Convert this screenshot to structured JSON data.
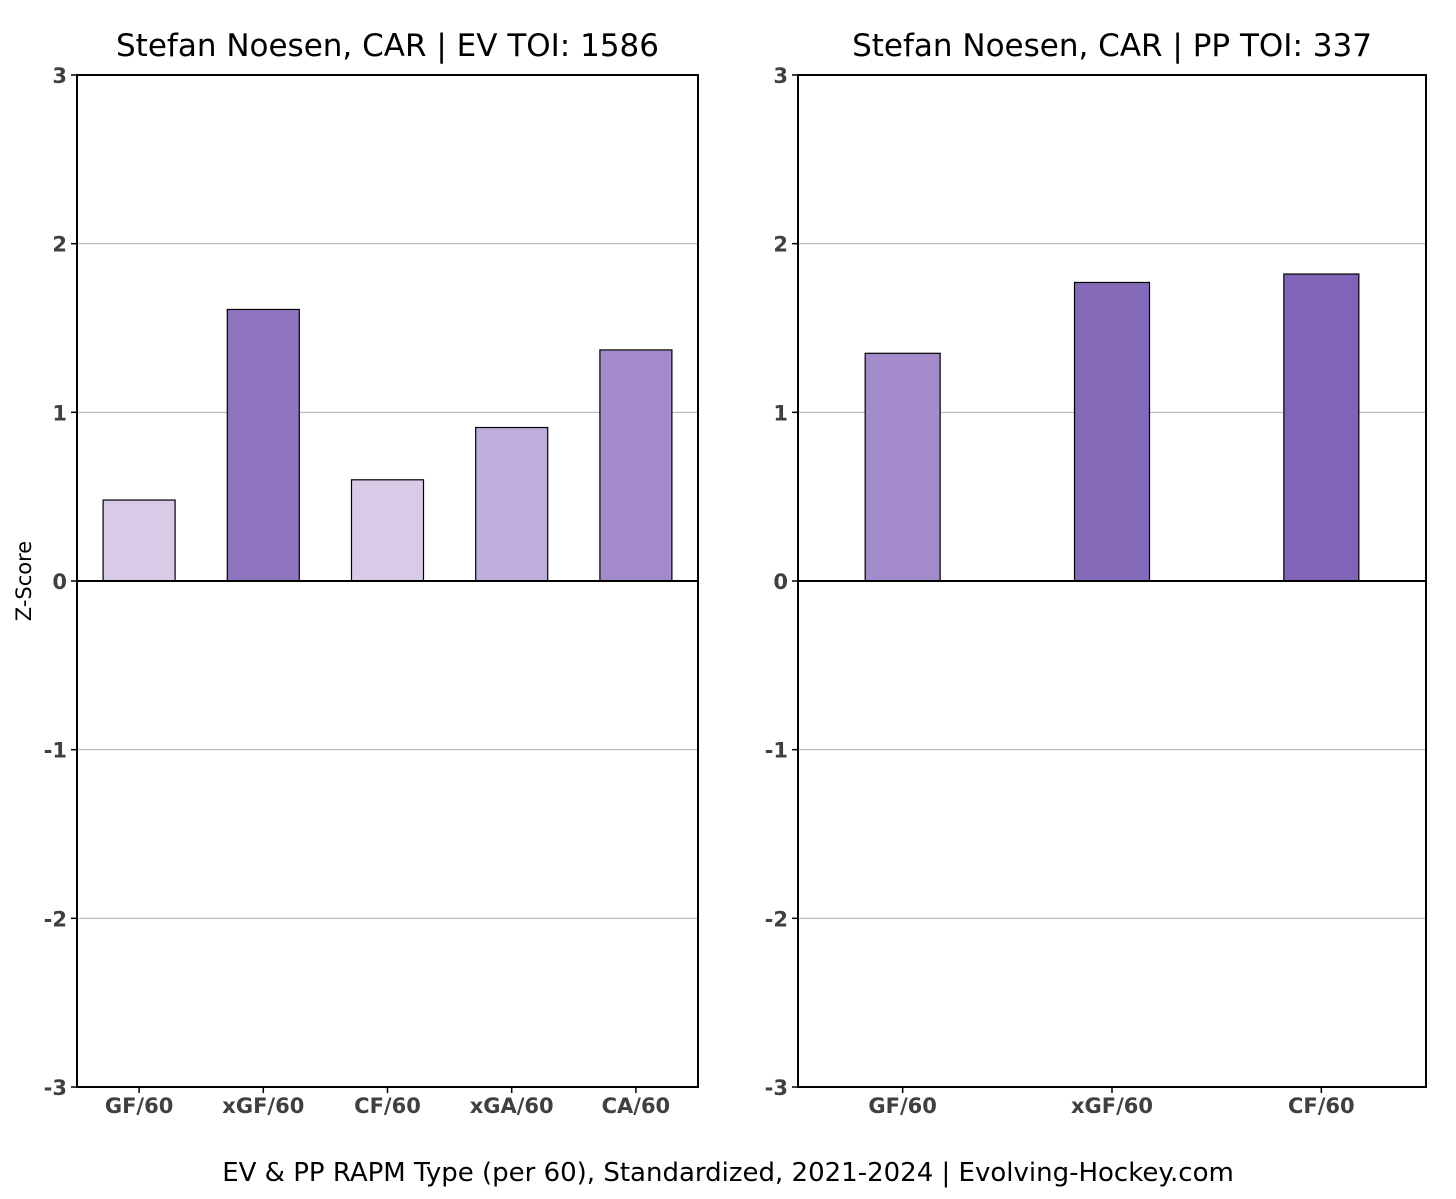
{
  "chart_data": [
    {
      "type": "bar",
      "title": "Stefan Noesen, CAR  |  EV TOI: 1586",
      "ylabel": "Z-Score",
      "ylim": [
        -3,
        3
      ],
      "yticks": [
        3,
        2,
        1,
        0,
        -1,
        -2,
        -3
      ],
      "grid": true,
      "categories": [
        "GF/60",
        "xGF/60",
        "CF/60",
        "xGA/60",
        "CA/60"
      ],
      "values": [
        0.48,
        1.61,
        0.6,
        0.91,
        1.37
      ],
      "colors": [
        "#d9cbe8",
        "#8e74bf",
        "#d9cbe8",
        "#bfaedb",
        "#a38bcb"
      ]
    },
    {
      "type": "bar",
      "title": "Stefan Noesen, CAR  |  PP TOI: 337",
      "ylabel": "",
      "ylim": [
        -3,
        3
      ],
      "yticks": [
        3,
        2,
        1,
        0,
        -1,
        -2,
        -3
      ],
      "grid": true,
      "categories": [
        "GF/60",
        "xGF/60",
        "CF/60"
      ],
      "values": [
        1.35,
        1.77,
        1.82
      ],
      "colors": [
        "#a38bcb",
        "#866aba",
        "#8164b7"
      ]
    }
  ],
  "caption": "EV & PP RAPM Type (per 60), Standardized, 2021-2024    |    Evolving-Hockey.com"
}
